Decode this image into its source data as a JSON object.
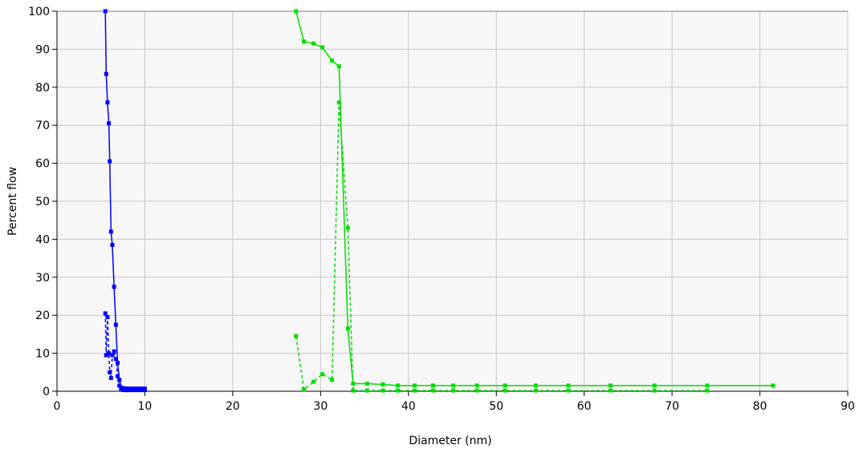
{
  "chart_data": {
    "type": "line",
    "title": "",
    "xlabel": "Diameter (nm)",
    "ylabel": "Percent flow",
    "xlim": [
      0,
      90
    ],
    "ylim": [
      0,
      100
    ],
    "xticks": [
      0,
      10,
      20,
      30,
      40,
      50,
      60,
      70,
      80,
      90
    ],
    "yticks": [
      0,
      10,
      20,
      30,
      40,
      50,
      60,
      70,
      80,
      90,
      100
    ],
    "grid": true,
    "legend": "none",
    "colors": {
      "blue": "#0000ff",
      "green": "#00dd00",
      "grid": "#c8c8c8",
      "plot_bg": "#f7f7f7"
    },
    "series": [
      {
        "color": "#0000ff",
        "style": "solid",
        "x": [
          5.5,
          5.6,
          5.75,
          5.9,
          6.0,
          6.15,
          6.3,
          6.5,
          6.7,
          6.9,
          7.1,
          7.3,
          7.6,
          7.9,
          8.2,
          8.5,
          8.8,
          9.1,
          9.4,
          9.7,
          10.0
        ],
        "y": [
          100,
          83.5,
          76,
          70.5,
          60.5,
          42,
          38.5,
          27.5,
          17.5,
          7.5,
          3,
          1,
          0.8,
          0.7,
          0.7,
          0.7,
          0.7,
          0.7,
          0.7,
          0.7,
          0.7
        ]
      },
      {
        "color": "#0000ff",
        "style": "dashed",
        "x": [
          5.5,
          5.6,
          5.75,
          5.9,
          6.0,
          6.15,
          6.3,
          6.5,
          6.7,
          6.9,
          7.1,
          7.3,
          7.6,
          7.9,
          8.2,
          8.5,
          8.8,
          9.1,
          9.4,
          9.7,
          10.0
        ],
        "y": [
          20.5,
          9.5,
          19.5,
          10,
          5,
          3.5,
          9.5,
          10.5,
          8.5,
          4,
          1.5,
          0.5,
          0.3,
          0.3,
          0.3,
          0.3,
          0.3,
          0.3,
          0.3,
          0.3,
          0.3
        ]
      },
      {
        "color": "#00dd00",
        "style": "solid",
        "x": [
          27.2,
          28.1,
          29.2,
          30.2,
          31.3,
          32.1,
          33.1,
          33.7,
          35.3,
          37.1,
          38.8,
          40.7,
          42.8,
          45.1,
          47.8,
          51.0,
          54.5,
          58.2,
          63.0,
          68.0,
          74.0,
          81.5
        ],
        "y": [
          100,
          92,
          91.5,
          90.5,
          87,
          85.5,
          16.5,
          2,
          2,
          1.8,
          1.5,
          1.5,
          1.5,
          1.5,
          1.5,
          1.5,
          1.5,
          1.5,
          1.5,
          1.5,
          1.5,
          1.5
        ]
      },
      {
        "color": "#00dd00",
        "style": "dashed",
        "x": [
          27.2,
          28.1,
          29.2,
          30.2,
          31.3,
          32.1,
          33.1,
          33.7,
          35.3,
          37.1,
          38.8,
          40.7,
          42.8,
          45.1,
          47.8,
          51.0,
          54.5,
          58.2,
          63.0,
          68.0,
          74.0
        ],
        "y": [
          14.5,
          0.5,
          2.5,
          4.5,
          3,
          76,
          43,
          0.2,
          0.2,
          0.2,
          0.2,
          0.2,
          0.2,
          0.2,
          0.2,
          0.2,
          0.2,
          0.2,
          0.2,
          0.2,
          0.2
        ]
      }
    ]
  }
}
